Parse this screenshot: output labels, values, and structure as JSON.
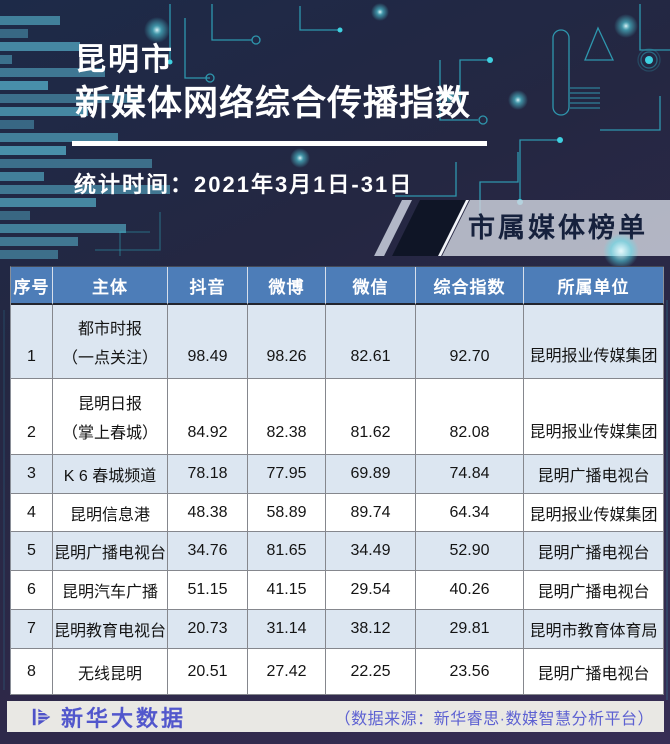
{
  "header": {
    "title_line1": "昆明市",
    "title_line2": "新媒体网络综合传播指数",
    "stat_time": "统计时间：2021年3月1日-31日",
    "badge_label": "市属媒体榜单"
  },
  "chart_data": {
    "type": "table",
    "title": "昆明市新媒体网络综合传播指数",
    "subtitle": "统计时间：2021年3月1日-31日",
    "section_label": "市属媒体榜单",
    "columns": [
      "序号",
      "主体",
      "抖音",
      "微博",
      "微信",
      "综合指数",
      "所属单位"
    ],
    "rows": [
      {
        "rank": "1",
        "name_lines": [
          "都市时报",
          "（一点关注）"
        ],
        "douyin": "98.49",
        "weibo": "98.26",
        "weixin": "82.61",
        "composite": "92.70",
        "org": "昆明报业传媒集团"
      },
      {
        "rank": "2",
        "name_lines": [
          "昆明日报",
          "（掌上春城）"
        ],
        "douyin": "84.92",
        "weibo": "82.38",
        "weixin": "81.62",
        "composite": "82.08",
        "org": "昆明报业传媒集团"
      },
      {
        "rank": "3",
        "name_lines": [
          "K 6 春城频道"
        ],
        "douyin": "78.18",
        "weibo": "77.95",
        "weixin": "69.89",
        "composite": "74.84",
        "org": "昆明广播电视台"
      },
      {
        "rank": "4",
        "name_lines": [
          "昆明信息港"
        ],
        "douyin": "48.38",
        "weibo": "58.89",
        "weixin": "89.74",
        "composite": "64.34",
        "org": "昆明报业传媒集团"
      },
      {
        "rank": "5",
        "name_lines": [
          "昆明广播电视台"
        ],
        "douyin": "34.76",
        "weibo": "81.65",
        "weixin": "34.49",
        "composite": "52.90",
        "org": "昆明广播电视台"
      },
      {
        "rank": "6",
        "name_lines": [
          "昆明汽车广播"
        ],
        "douyin": "51.15",
        "weibo": "41.15",
        "weixin": "29.54",
        "composite": "40.26",
        "org": "昆明广播电视台"
      },
      {
        "rank": "7",
        "name_lines": [
          "昆明教育电视台"
        ],
        "douyin": "20.73",
        "weibo": "31.14",
        "weixin": "38.12",
        "composite": "29.81",
        "org": "昆明市教育体育局"
      },
      {
        "rank": "8",
        "name_lines": [
          "无线昆明"
        ],
        "douyin": "20.51",
        "weibo": "27.42",
        "weixin": "22.25",
        "composite": "23.56",
        "org": "昆明广播电视台"
      }
    ]
  },
  "footer": {
    "brand": "新华大数据",
    "source": "（数据来源：新华睿思·数媒智慧分析平台）"
  },
  "colors": {
    "header_blue": "#4d7db8",
    "row_alt_blue": "#dce6f1",
    "row_white": "#ffffff",
    "accent_teal": "#38c8da",
    "footer_strip": "#e9e8e4",
    "footer_purple": "#5257cc",
    "badge_gray": "#ced3dd",
    "badge_text_navy": "#16213d",
    "background_navy": "#1d2a48",
    "background_purple": "#372e55",
    "title_white": "#ffffff"
  }
}
